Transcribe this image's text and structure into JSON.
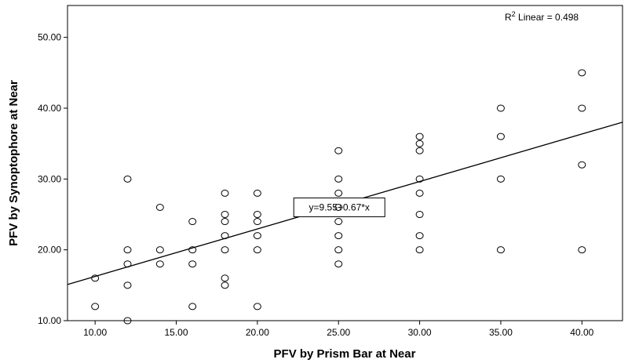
{
  "chart_data": {
    "type": "scatter",
    "xlabel": "PFV by Prism Bar at Near",
    "ylabel": "PFV by Synoptophore at Near",
    "xlim": [
      8.3,
      42.5
    ],
    "ylim": [
      10.0,
      54.5
    ],
    "x_ticks": [
      "10.00",
      "15.00",
      "20.00",
      "25.00",
      "30.00",
      "35.00",
      "40.00"
    ],
    "y_ticks": [
      "10.00",
      "20.00",
      "30.00",
      "40.00",
      "50.00"
    ],
    "x_tick_values": [
      10,
      15,
      20,
      25,
      30,
      35,
      40
    ],
    "y_tick_values": [
      10,
      20,
      30,
      40,
      50
    ],
    "grid": false,
    "r2_label": {
      "prefix": "R",
      "sup": "2",
      "suffix": " Linear = 0.498"
    },
    "fit_line": {
      "label": "y=9.55+0.67*x",
      "intercept": 9.55,
      "slope": 0.67,
      "label_x": 25.0,
      "label_y": 26.0
    },
    "points": [
      [
        10,
        16
      ],
      [
        10,
        12
      ],
      [
        12,
        30
      ],
      [
        12,
        20
      ],
      [
        12,
        18
      ],
      [
        12,
        15
      ],
      [
        12,
        10
      ],
      [
        14,
        26
      ],
      [
        14,
        20
      ],
      [
        14,
        18
      ],
      [
        16,
        24
      ],
      [
        16,
        20
      ],
      [
        16,
        18
      ],
      [
        16,
        12
      ],
      [
        18,
        28
      ],
      [
        18,
        25
      ],
      [
        18,
        24
      ],
      [
        18,
        22
      ],
      [
        18,
        20
      ],
      [
        18,
        16
      ],
      [
        18,
        15
      ],
      [
        20,
        28
      ],
      [
        20,
        25
      ],
      [
        20,
        24
      ],
      [
        20,
        22
      ],
      [
        20,
        20
      ],
      [
        20,
        12
      ],
      [
        25,
        34
      ],
      [
        25,
        30
      ],
      [
        25,
        28
      ],
      [
        25,
        26
      ],
      [
        25,
        24
      ],
      [
        25,
        22
      ],
      [
        25,
        20
      ],
      [
        25,
        18
      ],
      [
        30,
        36
      ],
      [
        30,
        35
      ],
      [
        30,
        34
      ],
      [
        30,
        30
      ],
      [
        30,
        28
      ],
      [
        30,
        25
      ],
      [
        30,
        22
      ],
      [
        30,
        20
      ],
      [
        35,
        40
      ],
      [
        35,
        36
      ],
      [
        35,
        30
      ],
      [
        35,
        20
      ],
      [
        40,
        45
      ],
      [
        40,
        40
      ],
      [
        40,
        32
      ],
      [
        40,
        20
      ]
    ]
  }
}
